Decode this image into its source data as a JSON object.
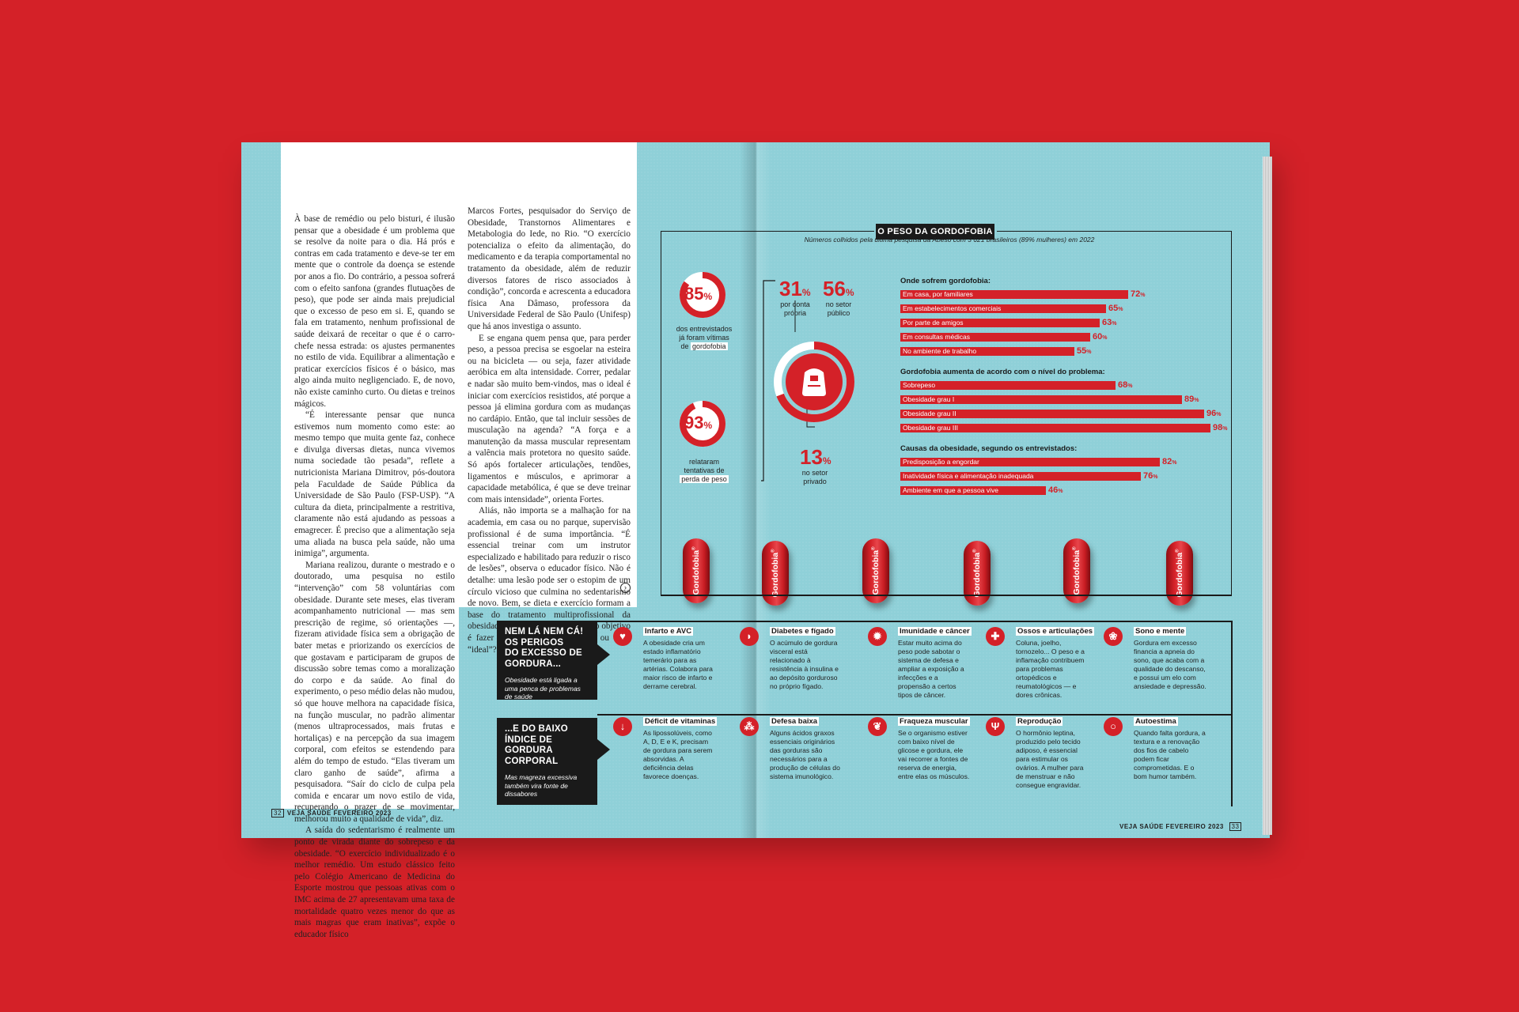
{
  "left_page": {
    "col1": [
      "À base de remédio ou pelo bisturi, é ilusão pensar que a obesidade é um problema que se resolve da noite para o dia. Há prós e contras em cada tratamento e deve-se ter em mente que o controle da doença se estende por anos a fio. Do contrário, a pessoa sofrerá com o efeito sanfona (grandes flutuações de peso), que pode ser ainda mais prejudicial que o excesso de peso em si. E, quando se fala em tratamento, nenhum profissional de saúde deixará de receitar o que é o carro-chefe nessa estrada: os ajustes permanentes no estilo de vida. Equilibrar a alimentação e praticar exercícios físicos é o básico, mas algo ainda muito negligenciado. E, de novo, não existe caminho curto. Ou dietas e treinos mágicos.",
      "“É interessante pensar que nunca estivemos num momento como este: ao mesmo tempo que muita gente faz, conhece e divulga diversas dietas, nunca vivemos numa sociedade tão pesada”, reflete a nutricionista Mariana Dimitrov, pós-doutora pela Faculdade de Saúde Pública da Universidade de São Paulo (FSP-USP). “A cultura da dieta, principalmente a restritiva, claramente não está ajudando as pessoas a emagrecer. É preciso que a alimentação seja uma aliada na busca pela saúde, não uma inimiga”, argumenta.",
      "Mariana realizou, durante o mestrado e o doutorado, uma pesquisa no estilo “intervenção” com 58 voluntárias com obesidade. Durante sete meses, elas tiveram acompanhamento nutricional — mas sem prescrição de regime, só orientações —, fizeram atividade física sem a obrigação de bater metas e priorizando os exercícios de que gostavam e participaram de grupos de discussão sobre temas como a moralização do corpo e da saúde. Ao final do experimento, o peso médio delas não mudou, só que houve melhora na capacidade física, na função muscular, no padrão alimentar (menos ultraprocessados, mais frutas e hortaliças) e na percepção da sua imagem corporal, com efeitos se estendendo para além do tempo de estudo. “Elas tiveram um claro ganho de saúde”, afirma a pesquisadora. “Saír do ciclo de culpa pela comida e encarar um novo estilo de vida, recuperando o prazer de se movimentar, melhorou muito a qualidade de vida”, diz.",
      "A saída do sedentarismo é realmente um ponto de virada diante do sobrepeso e da obesidade. “O exercício individualizado é o melhor remédio. Um estudo clássico feito pelo Colégio Americano de Medicina do Esporte mostrou que pessoas ativas com o IMC acima de 27 apresentavam uma taxa de mortalidade quatro vezes menor do que as mais magras que eram inativas”, expõe o educador físico"
    ],
    "col2": [
      "Marcos Fortes, pesquisador do Serviço de Obesidade, Transtornos Alimentares e Metabologia do Iede, no Rio. “O exercício potencializa o efeito da alimentação, do medicamento e da terapia comportamental no tratamento da obesidade, além de reduzir diversos fatores de risco associados à condição”, concorda e acrescenta a educadora física Ana Dâmaso, professora da Universidade Federal de São Paulo (Unifesp) que há anos investiga o assunto.",
      "E se engana quem pensa que, para perder peso, a pessoa precisa se esgoelar na esteira ou na bicicleta — ou seja, fazer atividade aeróbica em alta intensidade. Correr, pedalar e nadar são muito bem-vindos, mas o ideal é iniciar com exercícios resistidos, até porque a pessoa já elimina gordura com as mudanças no cardápio. Então, que tal incluir sessões de musculação na agenda? “A força e a manutenção da massa muscular representam a valência mais protetora no quesito saúde. Só após fortalecer articulações, tendões, ligamentos e músculos, e aprimorar a capacidade metabólica, é que se deve treinar com mais intensidade”, orienta Fortes.",
      "Aliás, não importa se a malhação for na academia, em casa ou no parque, supervisão profissional é de suma importância. “É essencial treinar com um instrutor especializado e habilitado para reduzir o risco de lesões”, observa o educador físico. Não é detalhe: uma lesão pode ser o estopim de um círculo vicioso que culmina no sedentarismo de novo. Bem, se dieta e exercício formam a base do tratamento multiprofissional da obesidade, talvez você se pergunte: o objetivo é fazer o sujeito atingir um peso ou IMC “ideal”? Na verdade, não."
    ],
    "footer_page": "32",
    "footer_text": "VEJA SAÚDE  FEVEREIRO 2023"
  },
  "infographic": {
    "title": "O PESO DA GORDOFOBIA",
    "subtitle": "Números colhidos pela última pesquisa da Abeso com 3 621 brasileiros (89% mulheres) em 2022",
    "donut1": {
      "value": "85",
      "pct": 85,
      "label1": "dos entrevistados",
      "label2": "já foram vítimas",
      "label3": "de",
      "label_hl": "gordofobia"
    },
    "donut2": {
      "value": "93",
      "pct": 93,
      "label1": "relataram",
      "label2": "tentativas de",
      "label_hl": "perda de peso"
    },
    "n31": "31",
    "n31_l1": "por conta",
    "n31_l2": "própria",
    "n56": "56",
    "n56_l1": "no setor",
    "n56_l2": "público",
    "n13": "13",
    "n13_l1": "no setor",
    "n13_l2": "privado",
    "pct": "%",
    "sections": [
      {
        "heading": "Onde sofrem gordofobia:",
        "bars": [
          {
            "label": "Em casa, por familiares",
            "value": 72
          },
          {
            "label": "Em estabelecimentos comerciais",
            "value": 65
          },
          {
            "label": "Por parte de amigos",
            "value": 63
          },
          {
            "label": "Em consultas médicas",
            "value": 60
          },
          {
            "label": "No ambiente de trabalho",
            "value": 55
          }
        ]
      },
      {
        "heading": "Gordofobia aumenta de acordo com o nível do problema:",
        "bars": [
          {
            "label": "Sobrepeso",
            "value": 68
          },
          {
            "label": "Obesidade grau I",
            "value": 89
          },
          {
            "label": "Obesidade grau II",
            "value": 96
          },
          {
            "label": "Obesidade grau III",
            "value": 98
          }
        ]
      },
      {
        "heading": "Causas da obesidade, segundo os entrevistados:",
        "bars": [
          {
            "label": "Predisposição a engordar",
            "value": 82
          },
          {
            "label": "Inatividade física e alimentação inadequada",
            "value": 76
          },
          {
            "label": "Ambiente em que a pessoa vive",
            "value": 46
          }
        ]
      }
    ],
    "pill_label": "Gordofobia",
    "pill_reg": "®"
  },
  "effects": {
    "excess": {
      "heading_lines": [
        "NEM LÁ NEM CÁ!",
        "OS PERIGOS",
        "DO EXCESSO DE",
        "GORDURA..."
      ],
      "note": "Obesidade está ligada a uma penca de problemas de saúde",
      "items": [
        {
          "title": "Infarto e AVC",
          "text": "A obesidade cria um estado inflamatório temerário para as artérias. Colabora para maior risco de infarto e derrame cerebral.",
          "icon": "heart-icon"
        },
        {
          "title": "Diabetes e fígado",
          "text": "O acúmulo de gordura visceral está relacionado à resistência à insulina e ao depósito gorduroso no próprio fígado.",
          "icon": "liver-icon"
        },
        {
          "title": "Imunidade e câncer",
          "text": "Estar muito acima do peso pode sabotar o sistema de defesa e ampliar a exposição a infecções e a propensão a certos tipos de câncer.",
          "icon": "virus-icon"
        },
        {
          "title": "Ossos e articulações",
          "text": "Coluna, joelho, tornozelo... O peso e a inflamação contribuem para problemas ortopédicos e reumatológicos — e dores crônicas.",
          "icon": "knee-icon"
        },
        {
          "title": "Sono e mente",
          "text": "Gordura em excesso financia a apneia do sono, que acaba com a qualidade do descanso, e possui um elo com ansiedade e depressão.",
          "icon": "brain-icon"
        }
      ]
    },
    "low": {
      "heading_lines": [
        "...E DO BAIXO",
        "ÍNDICE DE",
        "GORDURA",
        "CORPORAL"
      ],
      "note": "Mas magreza excessiva também vira fonte de dissabores",
      "items": [
        {
          "title": "Déficit de vitaminas",
          "text": "As lipossolúveis, como A, D, E e K, precisam de gordura para serem absorvidas. A deficiência delas favorece doenças.",
          "icon": "down-arrow-icon"
        },
        {
          "title": "Defesa baixa",
          "text": "Alguns ácidos graxos essenciais originários das gorduras são necessários para a produção de células do sistema imunológico.",
          "icon": "cells-icon"
        },
        {
          "title": "Fraqueza muscular",
          "text": "Se o organismo estiver com baixo nível de glicose e gordura, ele vai recorrer a fontes de reserva de energia, entre elas os músculos.",
          "icon": "muscle-icon"
        },
        {
          "title": "Reprodução",
          "text": "O hormônio leptina, produzido pelo tecido adiposo, é essencial para estimular os ovários. A mulher para de menstruar e não consegue engravidar.",
          "icon": "uterus-icon"
        },
        {
          "title": "Autoestima",
          "text": "Quando falta gordura, a textura e a renovação dos fios de cabelo podem ficar comprometidas. E o bom humor também.",
          "icon": "mirror-icon"
        }
      ]
    }
  },
  "right_footer": {
    "text": "VEJA SAÚDE  FEVEREIRO 2023",
    "page": "33"
  },
  "colors": {
    "background": "#d42128",
    "page": "#8fd0d8",
    "accent": "#d42128",
    "dark": "#1a1a1a"
  }
}
